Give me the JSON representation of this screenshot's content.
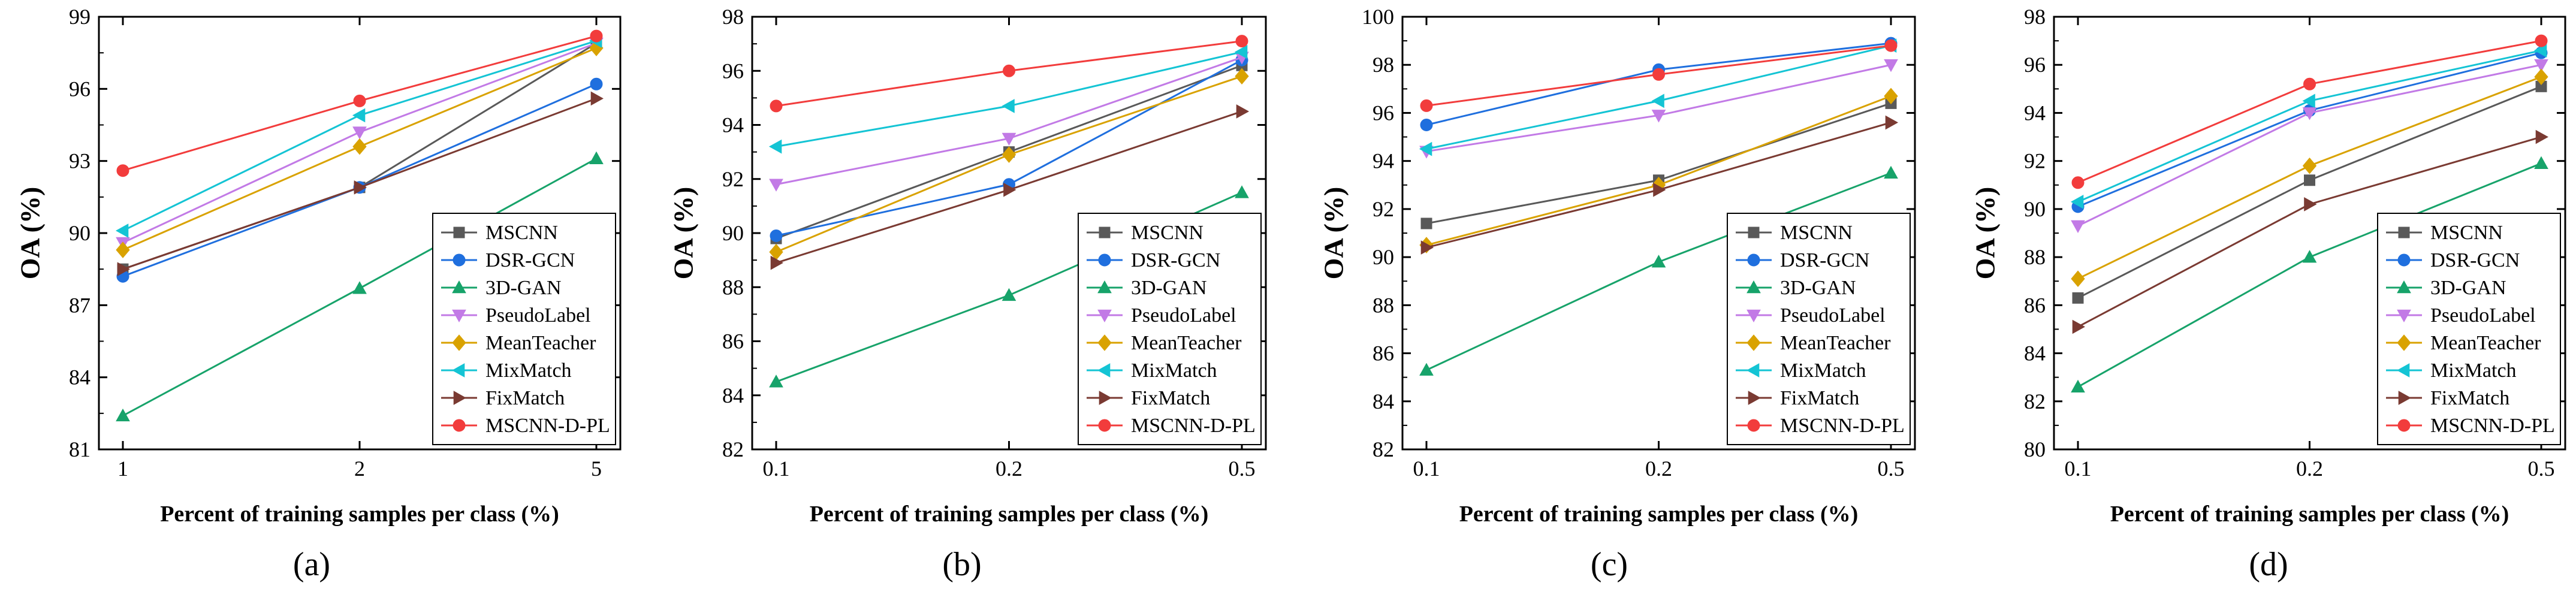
{
  "legend": [
    "MSCNN",
    "DSR-GCN",
    "3D-GAN",
    "PseudoLabel",
    "MeanTeacher",
    "MixMatch",
    "FixMatch",
    "MSCNN-D-PL"
  ],
  "series_colors": [
    "#595959",
    "#1f6fde",
    "#17a36a",
    "#c27ae6",
    "#d9a200",
    "#14c4d4",
    "#7a3a32",
    "#f23c3c"
  ],
  "series_markers": [
    "square",
    "circle",
    "triangle-up",
    "triangle-down",
    "diamond",
    "triangle-left",
    "triangle-right",
    "circle"
  ],
  "chart_data": [
    {
      "type": "line",
      "caption": "(a)",
      "xlabel": "Percent of training samples per class (%)",
      "ylabel": "OA (%)",
      "categories": [
        "1",
        "2",
        "5"
      ],
      "ylim": [
        81,
        99
      ],
      "yticks": [
        81,
        84,
        87,
        90,
        93,
        96,
        99
      ],
      "series": [
        {
          "name": "MSCNN",
          "values": [
            88.5,
            91.9,
            97.9
          ]
        },
        {
          "name": "DSR-GCN",
          "values": [
            88.2,
            91.9,
            96.2
          ]
        },
        {
          "name": "3D-GAN",
          "values": [
            82.4,
            87.7,
            93.1
          ]
        },
        {
          "name": "PseudoLabel",
          "values": [
            89.6,
            94.2,
            97.9
          ]
        },
        {
          "name": "MeanTeacher",
          "values": [
            89.3,
            93.6,
            97.7
          ]
        },
        {
          "name": "MixMatch",
          "values": [
            90.1,
            94.9,
            98.0
          ]
        },
        {
          "name": "FixMatch",
          "values": [
            88.5,
            91.9,
            95.6
          ]
        },
        {
          "name": "MSCNN-D-PL",
          "values": [
            92.6,
            95.5,
            98.2
          ]
        }
      ]
    },
    {
      "type": "line",
      "caption": "(b)",
      "xlabel": "Percent of training samples per class (%)",
      "ylabel": "OA (%)",
      "categories": [
        "0.1",
        "0.2",
        "0.5"
      ],
      "ylim": [
        82,
        98
      ],
      "yticks": [
        82,
        84,
        86,
        88,
        90,
        92,
        94,
        96,
        98
      ],
      "series": [
        {
          "name": "MSCNN",
          "values": [
            89.8,
            93.0,
            96.2
          ]
        },
        {
          "name": "DSR-GCN",
          "values": [
            89.9,
            91.8,
            96.4
          ]
        },
        {
          "name": "3D-GAN",
          "values": [
            84.5,
            87.7,
            91.5
          ]
        },
        {
          "name": "PseudoLabel",
          "values": [
            91.8,
            93.5,
            96.5
          ]
        },
        {
          "name": "MeanTeacher",
          "values": [
            89.3,
            92.9,
            95.8
          ]
        },
        {
          "name": "MixMatch",
          "values": [
            93.2,
            94.7,
            96.7
          ]
        },
        {
          "name": "FixMatch",
          "values": [
            88.9,
            91.6,
            94.5
          ]
        },
        {
          "name": "MSCNN-D-PL",
          "values": [
            94.7,
            96.0,
            97.1
          ]
        }
      ]
    },
    {
      "type": "line",
      "caption": "(c)",
      "xlabel": "Percent of training samples per class (%)",
      "ylabel": "OA (%)",
      "categories": [
        "0.1",
        "0.2",
        "0.5"
      ],
      "ylim": [
        82,
        100
      ],
      "yticks": [
        82,
        84,
        86,
        88,
        90,
        92,
        94,
        96,
        98,
        100
      ],
      "series": [
        {
          "name": "MSCNN",
          "values": [
            91.4,
            93.2,
            96.4
          ]
        },
        {
          "name": "DSR-GCN",
          "values": [
            95.5,
            97.8,
            98.9
          ]
        },
        {
          "name": "3D-GAN",
          "values": [
            85.3,
            89.8,
            93.5
          ]
        },
        {
          "name": "PseudoLabel",
          "values": [
            94.4,
            95.9,
            98.0
          ]
        },
        {
          "name": "MeanTeacher",
          "values": [
            90.5,
            93.0,
            96.7
          ]
        },
        {
          "name": "MixMatch",
          "values": [
            94.5,
            96.5,
            98.8
          ]
        },
        {
          "name": "FixMatch",
          "values": [
            90.4,
            92.8,
            95.6
          ]
        },
        {
          "name": "MSCNN-D-PL",
          "values": [
            96.3,
            97.6,
            98.8
          ]
        }
      ]
    },
    {
      "type": "line",
      "caption": "(d)",
      "xlabel": "Percent of training samples per class (%)",
      "ylabel": "OA (%)",
      "categories": [
        "0.1",
        "0.2",
        "0.5"
      ],
      "ylim": [
        80,
        98
      ],
      "yticks": [
        80,
        82,
        84,
        86,
        88,
        90,
        92,
        94,
        96,
        98
      ],
      "series": [
        {
          "name": "MSCNN",
          "values": [
            86.3,
            91.2,
            95.1
          ]
        },
        {
          "name": "DSR-GCN",
          "values": [
            90.1,
            94.1,
            96.5
          ]
        },
        {
          "name": "3D-GAN",
          "values": [
            82.6,
            88.0,
            91.9
          ]
        },
        {
          "name": "PseudoLabel",
          "values": [
            89.3,
            94.0,
            96.0
          ]
        },
        {
          "name": "MeanTeacher",
          "values": [
            87.1,
            91.8,
            95.5
          ]
        },
        {
          "name": "MixMatch",
          "values": [
            90.3,
            94.5,
            96.6
          ]
        },
        {
          "name": "FixMatch",
          "values": [
            85.1,
            90.2,
            93.0
          ]
        },
        {
          "name": "MSCNN-D-PL",
          "values": [
            91.1,
            95.2,
            97.0
          ]
        }
      ]
    }
  ]
}
